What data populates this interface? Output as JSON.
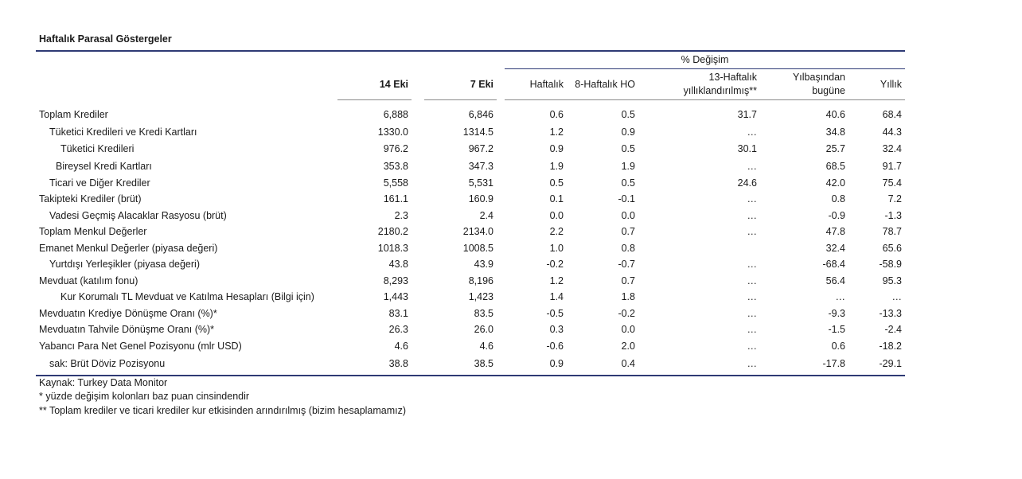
{
  "title": "Haftalık Parasal Göstergeler",
  "headers": {
    "group": "% Değişim",
    "col_14": "14 Eki",
    "col_7": "7 Eki",
    "weekly": "Haftalık",
    "ho8": "8-Haftalık HO",
    "w13_line1": "13-Haftalık",
    "w13_line2": "yıllıklandırılmış**",
    "ytd_line1": "Yılbaşından",
    "ytd_line2": "bugüne",
    "annual": "Yıllık"
  },
  "rows": [
    {
      "label": "Toplam Krediler",
      "v14": "6,888",
      "v7": "6,846",
      "w": "0.6",
      "h8": "0.5",
      "w13": "31.7",
      "ytd": "40.6",
      "yr": "68.4"
    },
    {
      "label": "Tüketici Kredileri ve Kredi Kartları",
      "v14": "1330.0",
      "v7": "1314.5",
      "w": "1.2",
      "h8": "0.9",
      "w13": "…",
      "ytd": "34.8",
      "yr": "44.3"
    },
    {
      "label": "Tüketici Kredileri",
      "v14": "976.2",
      "v7": "967.2",
      "w": "0.9",
      "h8": "0.5",
      "w13": "30.1",
      "ytd": "25.7",
      "yr": "32.4"
    },
    {
      "label": "Bireysel Kredi Kartları",
      "v14": "353.8",
      "v7": "347.3",
      "w": "1.9",
      "h8": "1.9",
      "w13": "…",
      "ytd": "68.5",
      "yr": "91.7"
    },
    {
      "label": "Ticari ve Diğer Krediler",
      "v14": "5,558",
      "v7": "5,531",
      "w": "0.5",
      "h8": "0.5",
      "w13": "24.6",
      "ytd": "42.0",
      "yr": "75.4"
    },
    {
      "label": "Takipteki Krediler (brüt)",
      "v14": "161.1",
      "v7": "160.9",
      "w": "0.1",
      "h8": "-0.1",
      "w13": "…",
      "ytd": "0.8",
      "yr": "7.2"
    },
    {
      "label": "Vadesi Geçmiş Alacaklar Rasyosu (brüt)",
      "v14": "2.3",
      "v7": "2.4",
      "w": "0.0",
      "h8": "0.0",
      "w13": "…",
      "ytd": "-0.9",
      "yr": "-1.3"
    },
    {
      "label": "Toplam Menkul Değerler",
      "v14": "2180.2",
      "v7": "2134.0",
      "w": "2.2",
      "h8": "0.7",
      "w13": "…",
      "ytd": "47.8",
      "yr": "78.7"
    },
    {
      "label": "Emanet Menkul Değerler (piyasa değeri)",
      "v14": "1018.3",
      "v7": "1008.5",
      "w": "1.0",
      "h8": "0.8",
      "w13": "",
      "ytd": "32.4",
      "yr": "65.6"
    },
    {
      "label": "Yurtdışı Yerleşikler (piyasa değeri)",
      "v14": "43.8",
      "v7": "43.9",
      "w": "-0.2",
      "h8": "-0.7",
      "w13": "…",
      "ytd": "-68.4",
      "yr": "-58.9"
    },
    {
      "label": "Mevduat (katılım fonu)",
      "v14": "8,293",
      "v7": "8,196",
      "w": "1.2",
      "h8": "0.7",
      "w13": "…",
      "ytd": "56.4",
      "yr": "95.3"
    },
    {
      "label": "Kur Korumalı TL Mevduat ve Katılma Hesapları (Bilgi için)",
      "v14": "1,443",
      "v7": "1,423",
      "w": "1.4",
      "h8": "1.8",
      "w13": "…",
      "ytd": "…",
      "yr": "…"
    },
    {
      "label": "Mevduatın Krediye Dönüşme Oranı (%)*",
      "v14": "83.1",
      "v7": "83.5",
      "w": "-0.5",
      "h8": "-0.2",
      "w13": "…",
      "ytd": "-9.3",
      "yr": "-13.3"
    },
    {
      "label": "Mevduatın Tahvile Dönüşme Oranı (%)*",
      "v14": "26.3",
      "v7": "26.0",
      "w": "0.3",
      "h8": "0.0",
      "w13": "…",
      "ytd": "-1.5",
      "yr": "-2.4"
    },
    {
      "label": "Yabancı Para Net Genel Pozisyonu (mlr USD)",
      "v14": "4.6",
      "v7": "4.6",
      "w": "-0.6",
      "h8": "2.0",
      "w13": "…",
      "ytd": "0.6",
      "yr": "-18.2"
    },
    {
      "label": "sak: Brüt Döviz Pozisyonu",
      "v14": "38.8",
      "v7": "38.5",
      "w": "0.9",
      "h8": "0.4",
      "w13": "…",
      "ytd": "-17.8",
      "yr": "-29.1"
    }
  ],
  "footnotes": [
    "Kaynak: Turkey Data Monitor",
    "* yüzde değişim kolonları baz puan cinsindendir",
    "** Toplam krediler ve ticari krediler kur etkisinden arındırılmış (bizim hesaplamamız)"
  ]
}
